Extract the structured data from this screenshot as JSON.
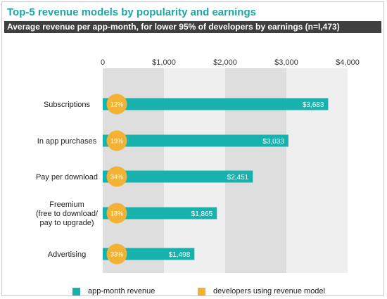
{
  "header": {
    "title": "Top-5 revenue models by popularity and earnings",
    "subtitle": "Average revenue per app-month, for lower 95% of developers by earnings (n=I,473)"
  },
  "colors": {
    "teal": "#17b2ad",
    "gold": "#f2b234",
    "band_dark": "#dedede",
    "band_light": "#efefef"
  },
  "legend": {
    "revenue_label": "app-month revenue",
    "developers_label": "developers using revenue model"
  },
  "chart_data": {
    "type": "bar",
    "orientation": "horizontal",
    "title": "Top-5 revenue models by popularity and earnings",
    "subtitle": "Average revenue per app-month, for lower 95% of developers by earnings (n=I,473)",
    "xlim": [
      0,
      4000
    ],
    "x_ticks": [
      0,
      1000,
      2000,
      3000,
      4000
    ],
    "x_tick_labels": [
      "0",
      "$1,000",
      "$2,000",
      "$3,000",
      "$4,000"
    ],
    "legend_position": "bottom",
    "categories": [
      [
        "Subscriptions"
      ],
      [
        "In app purchases"
      ],
      [
        "Pay per download"
      ],
      [
        "Freemium",
        "(free to download/",
        "pay to upgrade)"
      ],
      [
        "Advertising"
      ]
    ],
    "series": [
      {
        "name": "app-month revenue",
        "values": [
          3683,
          3033,
          2451,
          1865,
          1498
        ],
        "labels": [
          "$3,683",
          "$3,033",
          "$2,451",
          "$1,865",
          "$1,498"
        ]
      },
      {
        "name": "developers using revenue model",
        "values": [
          12,
          19,
          34,
          18,
          33
        ],
        "labels": [
          "12%",
          "19%",
          "34%",
          "18%",
          "33%"
        ]
      }
    ]
  }
}
